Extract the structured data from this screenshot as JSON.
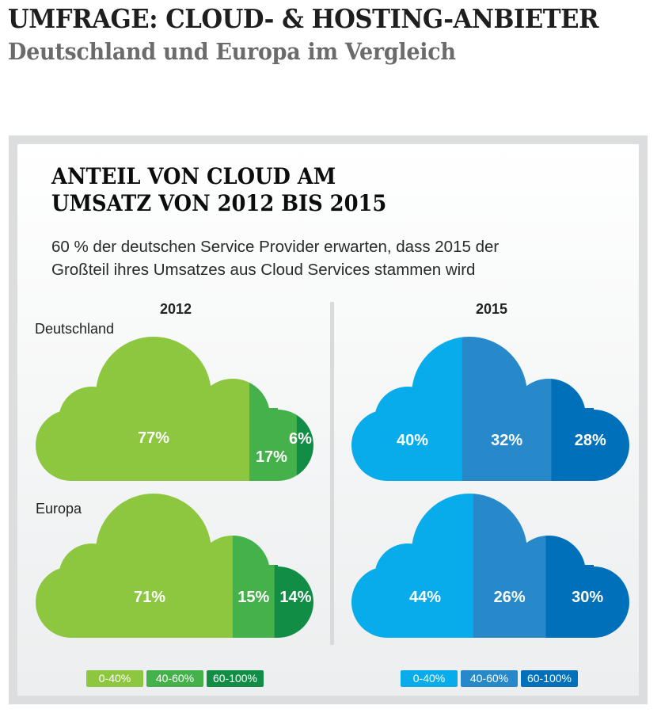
{
  "header": {
    "title": "UMFRAGE: CLOUD- & HOSTING-ANBIETER",
    "subtitle": "Deutschland und Europa im Vergleich"
  },
  "panel": {
    "title_line1": "ANTEIL VON CLOUD AM",
    "title_line2": "UMSATZ VON 2012 BIS 2015",
    "desc_line1": "60 % der deutschen Service Provider erwarten, dass 2015 der",
    "desc_line2": "Großteil ihres Umsatzes aus Cloud Services stammen wird"
  },
  "chart_data": {
    "type": "bar",
    "title": "Anteil von Cloud am Umsatz von 2012 bis 2015",
    "description": "Stacked cloud-shaped shares of service providers by cloud revenue share category",
    "years": [
      "2012",
      "2015"
    ],
    "regions": [
      "Deutschland",
      "Europa"
    ],
    "categories": [
      "0-40%",
      "40-60%",
      "60-100%"
    ],
    "colors": {
      "2012": [
        "#8dc63f",
        "#45b14a",
        "#128d45"
      ],
      "2015": [
        "#08acea",
        "#2789c9",
        "#0070ba"
      ]
    },
    "series": [
      {
        "year": "2012",
        "region": "Deutschland",
        "values": [
          77,
          17,
          6
        ],
        "labels": [
          "77%",
          "17%",
          "6%"
        ]
      },
      {
        "year": "2012",
        "region": "Europa",
        "values": [
          71,
          15,
          14
        ],
        "labels": [
          "71%",
          "15%",
          "14%"
        ]
      },
      {
        "year": "2015",
        "region": "Deutschland",
        "values": [
          40,
          32,
          28
        ],
        "labels": [
          "40%",
          "32%",
          "28%"
        ]
      },
      {
        "year": "2015",
        "region": "Europa",
        "values": [
          44,
          26,
          30
        ],
        "labels": [
          "44%",
          "26%",
          "30%"
        ]
      }
    ],
    "legend": {
      "2012": [
        "0-40%",
        "40-60%",
        "60-100%"
      ],
      "2015": [
        "0-40%",
        "40-60%",
        "60-100%"
      ],
      "placement": "bottom"
    }
  }
}
